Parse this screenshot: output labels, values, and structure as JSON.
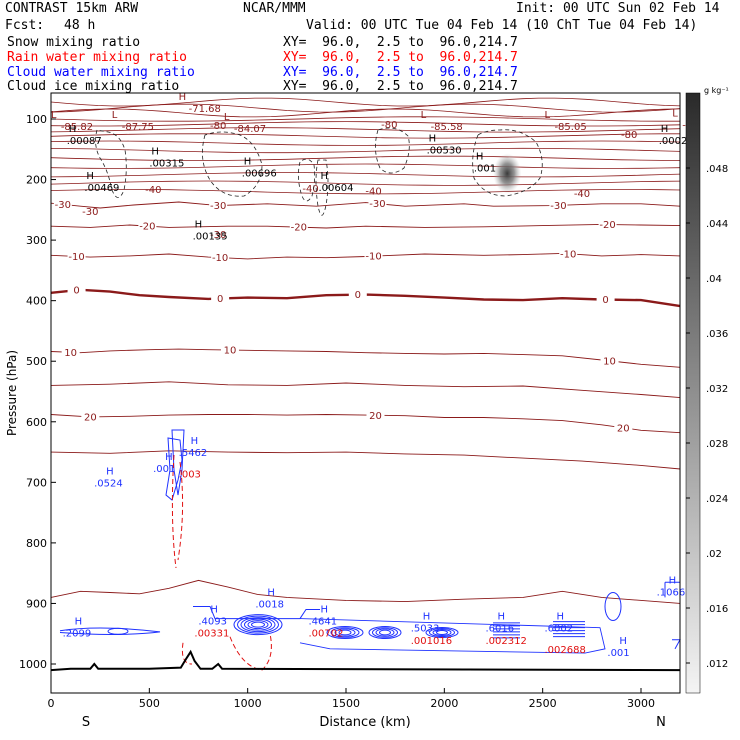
{
  "header": {
    "model": "CONTRAST 15km ARW",
    "center": "NCAR/MMM",
    "init": "Init: 00 UTC Sun 02 Feb 14",
    "fcst_label": "Fcst:",
    "fcst_value": "48 h",
    "valid": "Valid: 00 UTC Tue 04 Feb 14 (10 ChT Tue 04 Feb 14)"
  },
  "fields": [
    {
      "name": "Snow mixing ratio",
      "xy": "XY=  96.0,  2.5 to  96.0,214.7",
      "color": "#000000"
    },
    {
      "name": "Rain water mixing ratio",
      "xy": "XY=  96.0,  2.5 to  96.0,214.7",
      "color": "#ff0000"
    },
    {
      "name": "Cloud water mixing ratio",
      "xy": "XY=  96.0,  2.5 to  96.0,214.7",
      "color": "#0000ff"
    },
    {
      "name": "Cloud ice mixing ratio",
      "xy": "XY=  96.0,  2.5 to  96.0,214.7",
      "color": "#000000"
    }
  ],
  "colorbar": {
    "unit": "g kg⁻¹",
    "ticks": [
      ".048",
      ".044",
      ".04",
      ".036",
      ".032",
      ".028",
      ".024",
      ".02",
      ".016",
      ".012"
    ]
  },
  "chart_data": {
    "type": "contour",
    "xlabel": "Distance (km)",
    "ylabel": "Pressure (hPa)",
    "xlim": [
      0,
      3200
    ],
    "ylim": [
      1050,
      50
    ],
    "x_ticks": [
      0,
      500,
      1000,
      1500,
      2000,
      2500,
      3000
    ],
    "x_tick_labels": [
      "0",
      "500",
      "1000",
      "1500",
      "2000",
      "2500",
      "3000"
    ],
    "y_ticks": [
      100,
      200,
      300,
      400,
      500,
      600,
      700,
      800,
      900,
      1000
    ],
    "y_tick_labels": [
      "100",
      "200",
      "300",
      "400",
      "500",
      "600",
      "700",
      "800",
      "900",
      "1000"
    ],
    "x_ends": {
      "left": "S",
      "right": "N"
    },
    "temperature_contours": [
      {
        "value": -30,
        "label": "-30",
        "points": [
          [
            0,
            239
          ],
          [
            150,
            244
          ],
          [
            250,
            247
          ],
          [
            420,
            242
          ],
          [
            650,
            237
          ],
          [
            850,
            243
          ],
          [
            1100,
            240
          ],
          [
            1350,
            244
          ],
          [
            1600,
            238
          ],
          [
            1800,
            244
          ],
          [
            2100,
            240
          ],
          [
            2250,
            244
          ],
          [
            2550,
            243
          ],
          [
            2800,
            240
          ],
          [
            3000,
            240
          ],
          [
            3200,
            244
          ]
        ],
        "label_x": [
          60,
          850,
          1660,
          2580
        ]
      },
      {
        "value": -20,
        "label": "-20",
        "points": [
          [
            0,
            277
          ],
          [
            200,
            279
          ],
          [
            400,
            275
          ],
          [
            600,
            279
          ],
          [
            900,
            277
          ],
          [
            1100,
            277
          ],
          [
            1400,
            280
          ],
          [
            1600,
            277
          ],
          [
            1900,
            279
          ],
          [
            2200,
            278
          ],
          [
            2500,
            276
          ],
          [
            2800,
            274
          ],
          [
            3000,
            275
          ],
          [
            3200,
            276
          ]
        ],
        "label_x": [
          490,
          1260,
          2830
        ]
      },
      {
        "value": -10,
        "label": "-10",
        "points": [
          [
            0,
            325
          ],
          [
            200,
            328
          ],
          [
            400,
            326
          ],
          [
            600,
            323
          ],
          [
            800,
            328
          ],
          [
            1000,
            331
          ],
          [
            1200,
            328
          ],
          [
            1400,
            329
          ],
          [
            1600,
            327
          ],
          [
            1900,
            323
          ],
          [
            2200,
            325
          ],
          [
            2400,
            324
          ],
          [
            2600,
            322
          ],
          [
            2800,
            326
          ],
          [
            3000,
            324
          ],
          [
            3200,
            326
          ]
        ],
        "label_x": [
          130,
          860,
          1640,
          2630
        ]
      },
      {
        "value": 0,
        "label": "0",
        "points": [
          [
            0,
            387
          ],
          [
            150,
            382
          ],
          [
            300,
            385
          ],
          [
            450,
            391
          ],
          [
            600,
            394
          ],
          [
            800,
            397
          ],
          [
            1000,
            395
          ],
          [
            1200,
            396
          ],
          [
            1400,
            391
          ],
          [
            1600,
            390
          ],
          [
            1800,
            392
          ],
          [
            2000,
            395
          ],
          [
            2200,
            398
          ],
          [
            2400,
            399
          ],
          [
            2600,
            396
          ],
          [
            2800,
            398
          ],
          [
            3000,
            399
          ],
          [
            3200,
            409
          ]
        ],
        "label_x": [
          130,
          860,
          1560,
          2820
        ],
        "bold": true
      },
      {
        "value": 10,
        "label": "10",
        "points": [
          [
            0,
            484
          ],
          [
            150,
            486
          ],
          [
            300,
            483
          ],
          [
            500,
            481
          ],
          [
            650,
            480
          ],
          [
            800,
            481
          ],
          [
            1000,
            482
          ],
          [
            1200,
            483
          ],
          [
            1400,
            484
          ],
          [
            1600,
            486
          ],
          [
            1800,
            487
          ],
          [
            2000,
            488
          ],
          [
            2200,
            487
          ],
          [
            2400,
            489
          ],
          [
            2600,
            491
          ],
          [
            2800,
            498
          ],
          [
            3000,
            505
          ],
          [
            3200,
            510
          ]
        ],
        "label_x": [
          100,
          910,
          2840
        ]
      },
      {
        "value": 20,
        "label": "20",
        "points": [
          [
            0,
            588
          ],
          [
            200,
            592
          ],
          [
            400,
            591
          ],
          [
            600,
            589
          ],
          [
            800,
            588
          ],
          [
            1000,
            588
          ],
          [
            1200,
            589
          ],
          [
            1400,
            588
          ],
          [
            1600,
            589
          ],
          [
            1800,
            590
          ],
          [
            2000,
            593
          ],
          [
            2200,
            593
          ],
          [
            2400,
            595
          ],
          [
            2600,
            598
          ],
          [
            2800,
            605
          ],
          [
            3000,
            614
          ],
          [
            3200,
            618
          ]
        ],
        "label_x": [
          200,
          1650,
          2910
        ]
      }
    ],
    "extrema_labels": [
      {
        "type": "L",
        "value": "-85.82",
        "x": 50,
        "p": 115
      },
      {
        "type": "L",
        "value": "-87.75",
        "x": 360,
        "p": 115
      },
      {
        "type": "L",
        "value": "-84.07",
        "x": 930,
        "p": 118
      },
      {
        "type": "L",
        "value": "-85.58",
        "x": 1930,
        "p": 115
      },
      {
        "type": "L",
        "value": "-85.05",
        "x": 2560,
        "p": 115
      },
      {
        "type": "L",
        "value": "-84",
        "x": 3210,
        "p": 112
      },
      {
        "type": "H",
        "value": "-71.68",
        "x": 700,
        "p": 85
      }
    ],
    "snow_max_labels": [
      {
        "value": ".00087",
        "x": 80,
        "p": 135
      },
      {
        "value": ".00315",
        "x": 500,
        "p": 172
      },
      {
        "value": ".00696",
        "x": 970,
        "p": 188
      },
      {
        "value": ".00604",
        "x": 1360,
        "p": 212
      },
      {
        "value": ".00530",
        "x": 1910,
        "p": 150
      },
      {
        "value": ".001",
        "x": 2150,
        "p": 180
      },
      {
        "value": ".00027",
        "x": 3090,
        "p": 135
      },
      {
        "value": ".00469",
        "x": 170,
        "p": 212
      },
      {
        "value": ".00135",
        "x": 720,
        "p": 292
      }
    ],
    "cloud_water_max_labels": [
      {
        "value": ".0524",
        "x": 270,
        "p": 700
      },
      {
        "value": ".5462",
        "x": 700,
        "p": 650
      },
      {
        "value": ".001",
        "x": 570,
        "p": 676
      },
      {
        "value": ".2099",
        "x": 110,
        "p": 948
      },
      {
        "value": ".4093",
        "x": 800,
        "p": 928
      },
      {
        "value": ".0018",
        "x": 1090,
        "p": 900
      },
      {
        "value": ".4641",
        "x": 1360,
        "p": 928
      },
      {
        "value": ".5033",
        "x": 1880,
        "p": 940
      },
      {
        "value": ".6016",
        "x": 2260,
        "p": 940
      },
      {
        "value": ".6002",
        "x": 2560,
        "p": 940
      },
      {
        "value": ".001",
        "x": 2880,
        "p": 980
      },
      {
        "value": ".1066",
        "x": 3130,
        "p": 880
      }
    ],
    "rain_max_labels": [
      {
        "value": ".003",
        "x": 700,
        "p": 685
      },
      {
        "value": ".00331",
        "x": 780,
        "p": 948
      },
      {
        "value": ".00702",
        "x": 1360,
        "p": 948
      },
      {
        "value": ".001016",
        "x": 1880,
        "p": 960
      },
      {
        "value": ".002312",
        "x": 2260,
        "p": 960
      },
      {
        "value": ".002688",
        "x": 2560,
        "p": 975
      }
    ],
    "ice_max_location": {
      "x": 2320,
      "p": 190
    }
  }
}
